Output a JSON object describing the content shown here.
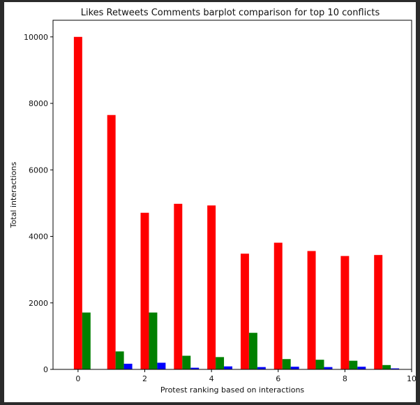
{
  "chart_data": {
    "type": "bar",
    "title": "Likes Retweets Comments barplot comparison for top 10 conflicts",
    "xlabel": "Protest ranking based on interactions",
    "ylabel": "Total interactions",
    "categories": [
      0,
      1,
      2,
      3,
      4,
      5,
      6,
      7,
      8,
      9
    ],
    "xlim": [
      -0.75,
      10
    ],
    "ylim": [
      0,
      10500
    ],
    "x_ticks": [
      0,
      2,
      4,
      6,
      8,
      10
    ],
    "y_ticks": [
      0,
      2000,
      4000,
      6000,
      8000,
      10000
    ],
    "bar_width": 0.25,
    "grid": false,
    "series": [
      {
        "color": "#ff0000",
        "offset": 0.0,
        "values": [
          10000,
          7650,
          4710,
          4980,
          4930,
          3480,
          3810,
          3560,
          3410,
          3440
        ]
      },
      {
        "color": "#008000",
        "offset": 0.25,
        "values": [
          1710,
          540,
          1710,
          410,
          370,
          1100,
          310,
          290,
          260,
          130
        ]
      },
      {
        "color": "#0000ff",
        "offset": 0.5,
        "values": [
          0,
          170,
          200,
          50,
          90,
          70,
          80,
          70,
          80,
          30
        ]
      }
    ]
  }
}
